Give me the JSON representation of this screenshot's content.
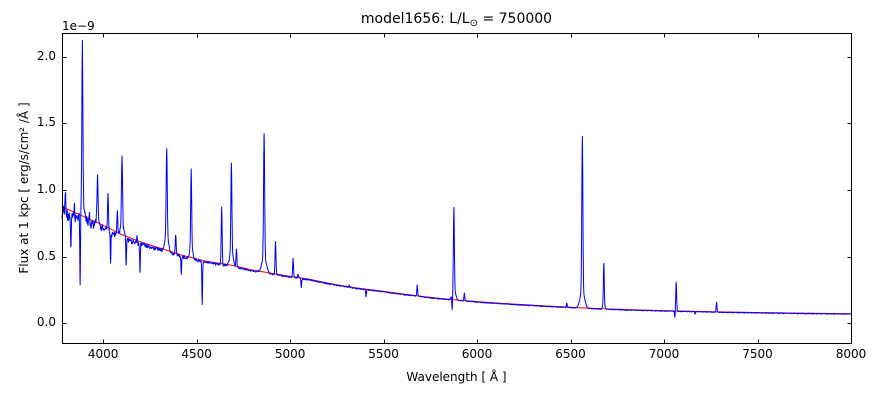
{
  "figure": {
    "title": {
      "prefix": "model1656: L/L",
      "sun_symbol": "⊙",
      "suffix": " = 750000"
    },
    "offset_text": "1e−9",
    "background_color": "#ffffff",
    "axes_edge_color": "#000000"
  },
  "chart_data": {
    "type": "line",
    "title": "model1656: L/L⊙ = 750000",
    "xlabel": "Wavelength [ Å ]",
    "ylabel": "Flux at 1 kpc [ erg/s/cm² /Å ]",
    "y_scale_offset": "1e−9",
    "grid": false,
    "legend": null,
    "xlim": [
      3780,
      8000
    ],
    "ylim": [
      -0.15,
      2.18
    ],
    "x_ticks": [
      4000,
      4500,
      5000,
      5500,
      6000,
      6500,
      7000,
      7500,
      8000
    ],
    "x_tick_labels": [
      "4000",
      "4500",
      "5000",
      "5500",
      "6000",
      "6500",
      "7000",
      "7500",
      "8000"
    ],
    "y_ticks": [
      0.0,
      0.5,
      1.0,
      1.5,
      2.0
    ],
    "y_tick_labels": [
      "0.0",
      "0.5",
      "1.0",
      "1.5",
      "2.0"
    ],
    "tick_direction": "in",
    "series": [
      {
        "name": "model spectrum",
        "color": "#0000ff",
        "role": "spectrum"
      },
      {
        "name": "continuum",
        "color": "#ff0000",
        "role": "continuum"
      }
    ],
    "continuum_points": [
      [
        3780,
        0.875
      ],
      [
        3850,
        0.83
      ],
      [
        3920,
        0.785
      ],
      [
        4000,
        0.735
      ],
      [
        4100,
        0.665
      ],
      [
        4200,
        0.61
      ],
      [
        4300,
        0.565
      ],
      [
        4420,
        0.51
      ],
      [
        4550,
        0.465
      ],
      [
        4686,
        0.435
      ],
      [
        4800,
        0.398
      ],
      [
        4950,
        0.362
      ],
      [
        5100,
        0.33
      ],
      [
        5220,
        0.295
      ],
      [
        5350,
        0.265
      ],
      [
        5490,
        0.24
      ],
      [
        5620,
        0.215
      ],
      [
        5770,
        0.19
      ],
      [
        5900,
        0.172
      ],
      [
        6050,
        0.156
      ],
      [
        6200,
        0.142
      ],
      [
        6350,
        0.13
      ],
      [
        6560,
        0.114
      ],
      [
        6700,
        0.106
      ],
      [
        6900,
        0.097
      ],
      [
        7100,
        0.09
      ],
      [
        7300,
        0.084
      ],
      [
        7500,
        0.079
      ],
      [
        7750,
        0.074
      ],
      [
        8000,
        0.07
      ]
    ],
    "emission_lines": [
      [
        3798,
        1.03,
        2.2
      ],
      [
        3846,
        0.93,
        2.0
      ],
      [
        3889,
        1.99,
        2.6
      ],
      [
        3889,
        0.95,
        11
      ],
      [
        3926,
        0.88,
        2.0
      ],
      [
        3970,
        1.05,
        2.6
      ],
      [
        3970,
        0.82,
        9
      ],
      [
        4026,
        1.01,
        2.4
      ],
      [
        4076,
        0.88,
        2.2
      ],
      [
        4101,
        1.2,
        2.8
      ],
      [
        4101,
        0.76,
        10
      ],
      [
        4144,
        0.66,
        2.2
      ],
      [
        4181,
        0.66,
        2.0
      ],
      [
        4340,
        1.2,
        2.8
      ],
      [
        4340,
        0.68,
        10
      ],
      [
        4388,
        0.68,
        2.2
      ],
      [
        4471,
        1.06,
        2.5
      ],
      [
        4471,
        0.6,
        8
      ],
      [
        4634,
        0.88,
        2.4
      ],
      [
        4686,
        1.09,
        2.6
      ],
      [
        4686,
        0.55,
        9
      ],
      [
        4713,
        0.56,
        2.2
      ],
      [
        4861,
        1.32,
        2.8
      ],
      [
        4861,
        0.5,
        12
      ],
      [
        4922,
        0.62,
        2.3
      ],
      [
        5016,
        0.49,
        2.3
      ],
      [
        5043,
        0.37,
        2.0
      ],
      [
        5169,
        0.31,
        2.0
      ],
      [
        5316,
        0.285,
        2.0
      ],
      [
        5680,
        0.285,
        2.2
      ],
      [
        5876,
        0.79,
        2.5
      ],
      [
        5876,
        0.26,
        9
      ],
      [
        5932,
        0.23,
        2.0
      ],
      [
        6480,
        0.155,
        2.0
      ],
      [
        6563,
        1.28,
        2.8
      ],
      [
        6563,
        0.24,
        12
      ],
      [
        6678,
        0.42,
        2.3
      ],
      [
        6678,
        0.14,
        6
      ],
      [
        7065,
        0.31,
        2.3
      ],
      [
        7281,
        0.16,
        2.2
      ]
    ],
    "absorption_lines": [
      [
        3827,
        0.6,
        1.8
      ],
      [
        3877,
        0.26,
        1.8
      ],
      [
        4040,
        0.47,
        1.8
      ],
      [
        4123,
        0.45,
        1.8
      ],
      [
        4197,
        0.4,
        1.8
      ],
      [
        4418,
        0.38,
        1.8
      ],
      [
        4530,
        0.16,
        1.8
      ],
      [
        5060,
        0.27,
        1.8
      ],
      [
        5406,
        0.2,
        1.8
      ],
      [
        5867,
        0.05,
        1.8
      ],
      [
        7058,
        0.045,
        1.6
      ],
      [
        7166,
        0.07,
        1.5
      ]
    ],
    "noise": {
      "base_amp": 0.004,
      "extra_amp": 0.055,
      "decay_angstrom": 420,
      "bias_factor": 0.5,
      "seed": 42
    }
  }
}
